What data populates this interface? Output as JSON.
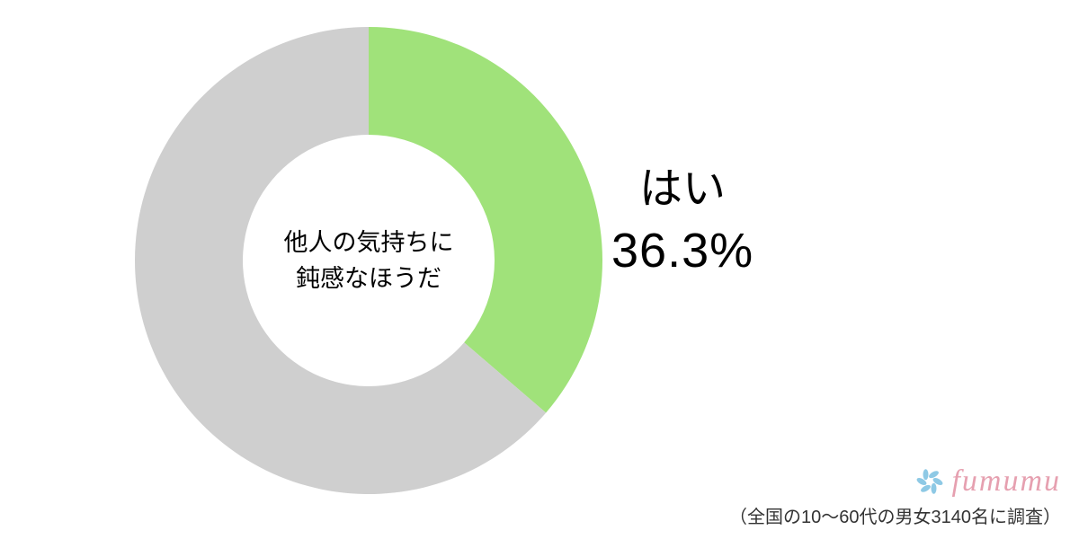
{
  "chart": {
    "type": "donut",
    "center_label_line1": "他人の気持ちに",
    "center_label_line2": "鈍感なほうだ",
    "slices": [
      {
        "label": "はい",
        "value": 36.3,
        "color": "#a0e27a"
      },
      {
        "label": "",
        "value": 63.7,
        "color": "#cfcfcf"
      }
    ],
    "highlight": {
      "answer_label": "はい",
      "percent_text": "36.3%"
    },
    "outer_radius": 260,
    "inner_radius": 140,
    "start_angle_deg": 0,
    "background_color": "#ffffff",
    "center_label_fontsize": 27,
    "answer_fontsize": 48,
    "percent_fontsize": 54,
    "text_color": "#000000"
  },
  "brand": {
    "name": "fumumu",
    "icon_color": "#7ac0e0",
    "text_color": "#e6a0b0"
  },
  "survey_note": "（全国の10〜60代の男女3140名に調査）"
}
